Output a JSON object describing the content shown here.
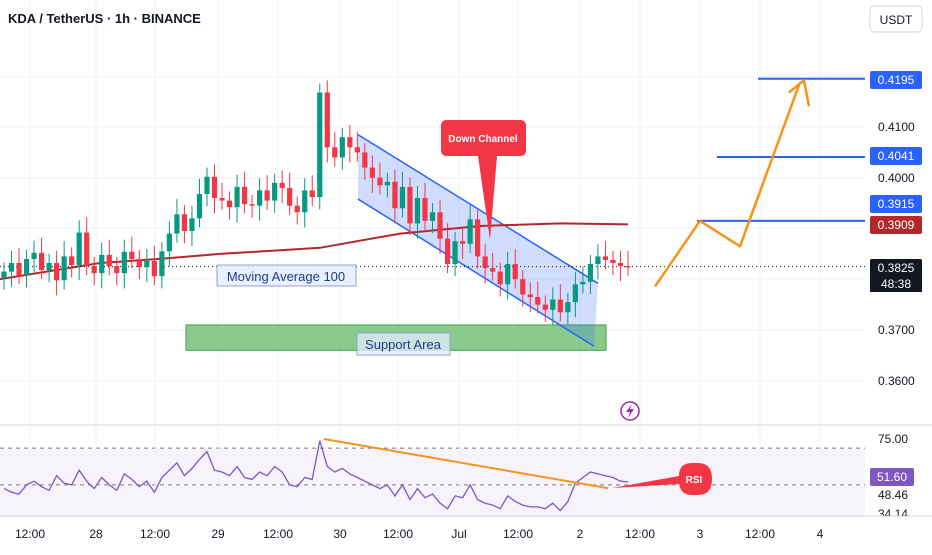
{
  "header": {
    "title": "KDA / TetherUS · 1h · BINANCE",
    "currency_button": "USDT"
  },
  "colors": {
    "background": "#ffffff",
    "grid": "#eef0f3",
    "candle_up": "#089981",
    "candle_down": "#f23645",
    "moving_average": "#b2282c",
    "channel": "#2962ff",
    "level_line": "#2962ff",
    "projection": "#f7931a",
    "support": "#4caf50",
    "rsi_line": "#7e57c2",
    "callout": "#f23645"
  },
  "annotations": {
    "moving_average_label": "Moving Average 100",
    "support_label": "Support Area",
    "channel_label": "Down Channel",
    "rsi_label": "RSI"
  },
  "price_badges": [
    {
      "value": "0.4195",
      "style": "blue"
    },
    {
      "value": "0.4041",
      "style": "blue"
    },
    {
      "value": "0.3915",
      "style": "blue"
    },
    {
      "value": "0.3909",
      "style": "red"
    },
    {
      "value": "0.3825",
      "style": "dark"
    }
  ],
  "countdown": "48:38",
  "rsi_axis": {
    "ticks": [
      "75.00",
      "48.46",
      "34.14"
    ],
    "current": "51.60"
  },
  "chart_data": {
    "type": "candlestick",
    "x_tick_labels": [
      "12:00",
      "28",
      "12:00",
      "29",
      "12:00",
      "30",
      "12:00",
      "Jul",
      "12:00",
      "2",
      "12:00",
      "3",
      "12:00",
      "4"
    ],
    "y_tick_labels": [
      "0.4100",
      "0.4000",
      "0.3700",
      "0.3600"
    ],
    "y_range": [
      0.3545,
      0.4285
    ],
    "current_price": 0.3825,
    "close_series": [
      0.3815,
      0.3832,
      0.3808,
      0.384,
      0.3852,
      0.3818,
      0.3832,
      0.3798,
      0.3845,
      0.3828,
      0.3892,
      0.3826,
      0.3812,
      0.3848,
      0.3826,
      0.3812,
      0.3854,
      0.384,
      0.3824,
      0.3836,
      0.3806,
      0.3855,
      0.389,
      0.3928,
      0.3895,
      0.392,
      0.3968,
      0.4002,
      0.396,
      0.3955,
      0.3942,
      0.3982,
      0.3948,
      0.3945,
      0.3975,
      0.3955,
      0.399,
      0.398,
      0.3945,
      0.3932,
      0.3975,
      0.3962,
      0.4168,
      0.406,
      0.404,
      0.408,
      0.406,
      0.405,
      0.402,
      0.4,
      0.3985,
      0.3992,
      0.394,
      0.3982,
      0.391,
      0.396,
      0.3915,
      0.3932,
      0.388,
      0.383,
      0.3875,
      0.387,
      0.3918,
      0.3845,
      0.3822,
      0.3815,
      0.379,
      0.383,
      0.38,
      0.377,
      0.3765,
      0.375,
      0.374,
      0.376,
      0.3735,
      0.3755,
      0.379,
      0.3795,
      0.383,
      0.3845,
      0.3838,
      0.3832,
      0.3826,
      0.3825
    ],
    "moving_average_100": [
      [
        0,
        0.38
      ],
      [
        100,
        0.3832
      ],
      [
        160,
        0.384
      ],
      [
        220,
        0.385
      ],
      [
        320,
        0.3862
      ],
      [
        400,
        0.389
      ],
      [
        480,
        0.3905
      ],
      [
        560,
        0.391
      ],
      [
        628,
        0.3908
      ]
    ],
    "channel_upper": [
      [
        358,
        0.4085
      ],
      [
        598,
        0.3792
      ]
    ],
    "channel_lower": [
      [
        358,
        0.3958
      ],
      [
        594,
        0.3668
      ]
    ],
    "support_area": [
      0.366,
      0.371
    ],
    "target_levels": [
      0.4195,
      0.4041,
      0.3915
    ],
    "projection_path": [
      [
        655,
        0.3786
      ],
      [
        700,
        0.3915
      ],
      [
        740,
        0.3865
      ],
      [
        800,
        0.4188
      ]
    ],
    "rsi": {
      "range": [
        34.14,
        75.0
      ],
      "values": [
        48,
        46,
        45,
        50,
        52,
        49,
        47,
        55,
        51,
        50,
        58,
        52,
        48,
        54,
        50,
        47,
        56,
        53,
        49,
        52,
        46,
        54,
        58,
        62,
        55,
        59,
        64,
        68,
        58,
        57,
        55,
        60,
        54,
        53,
        57,
        55,
        60,
        57,
        50,
        49,
        54,
        53,
        74,
        60,
        57,
        59,
        56,
        54,
        52,
        50,
        48,
        50,
        44,
        50,
        42,
        48,
        43,
        45,
        40,
        37,
        44,
        43,
        50,
        42,
        40,
        39,
        37,
        44,
        41,
        39,
        38,
        38,
        37,
        40,
        36,
        41,
        51,
        54,
        57,
        56,
        55,
        54,
        52,
        51.6
      ],
      "trendline": [
        [
          324,
          75
        ],
        [
          608,
          48.2
        ]
      ]
    }
  }
}
